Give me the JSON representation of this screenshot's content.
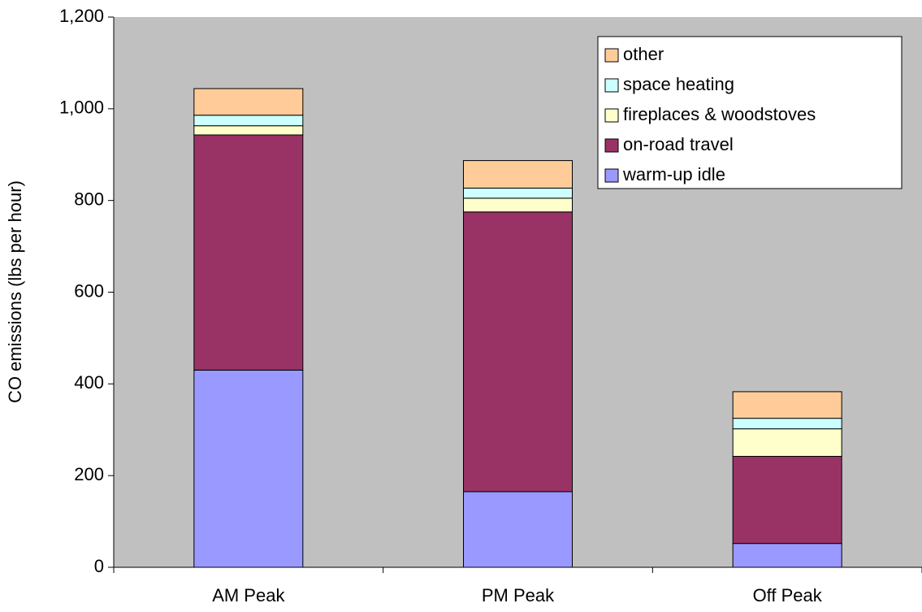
{
  "chart_data": {
    "type": "bar",
    "stacked": true,
    "title": "",
    "xlabel": "",
    "ylabel": "CO emissions (lbs per hour)",
    "ylim": [
      0,
      1200
    ],
    "yticks": [
      "0",
      "200",
      "400",
      "600",
      "800",
      "1,000",
      "1,200"
    ],
    "ytick_values": [
      0,
      200,
      400,
      600,
      800,
      1000,
      1200
    ],
    "grid": false,
    "legend_position": "top-right",
    "plot_background": "#c0c0c0",
    "categories": [
      "AM Peak",
      "PM Peak",
      "Off Peak"
    ],
    "series": [
      {
        "name": "warm-up idle",
        "color": "#9999ff",
        "values": [
          430,
          165,
          52
        ]
      },
      {
        "name": "on-road travel",
        "color": "#993366",
        "values": [
          513,
          610,
          190
        ]
      },
      {
        "name": "fireplaces & woodstoves",
        "color": "#ffffcc",
        "values": [
          20,
          30,
          60
        ]
      },
      {
        "name": "space heating",
        "color": "#ccffff",
        "values": [
          23,
          22,
          23
        ]
      },
      {
        "name": "other",
        "color": "#ffcc99",
        "values": [
          58,
          60,
          58
        ]
      }
    ]
  }
}
